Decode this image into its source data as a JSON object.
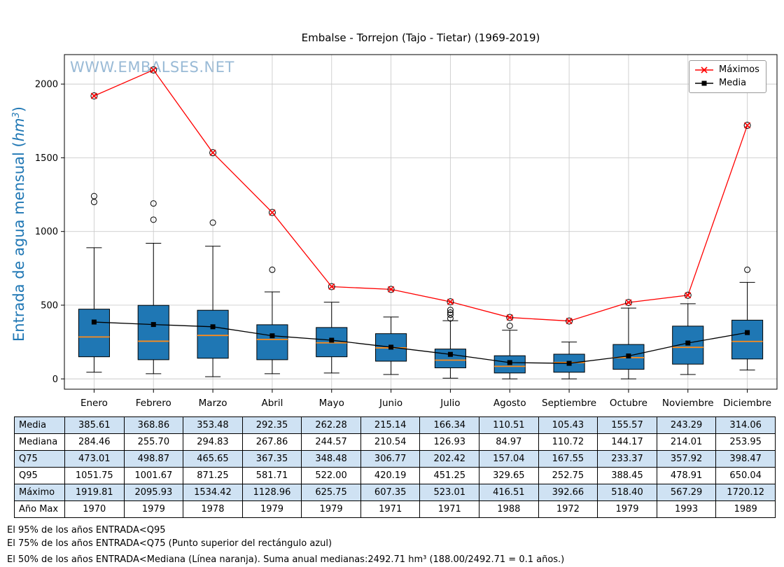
{
  "title": "Embalse - Torrejon (Tajo - Tietar) (1969-2019)",
  "watermark": "WWW.EMBALSES.NET",
  "ylabel": {
    "pre": "Entrada de agua mensual (",
    "unit": "hm",
    "sup": "3",
    "post": ")"
  },
  "legend": {
    "maximos": "Máximos",
    "media": "Media"
  },
  "chart_data": {
    "type": "boxplot",
    "title": "Embalse - Torrejon (Tajo - Tietar) (1969-2019)",
    "ylabel": "Entrada de agua mensual (hm³)",
    "categories": [
      "Enero",
      "Febrero",
      "Marzo",
      "Abril",
      "Mayo",
      "Junio",
      "Julio",
      "Agosto",
      "Septiembre",
      "Octubre",
      "Noviembre",
      "Diciembre"
    ],
    "ylim": [
      -70,
      2200
    ],
    "yticks": [
      0,
      500,
      1000,
      1500,
      2000
    ],
    "grid": true,
    "legend_position": "upper right",
    "colors": {
      "box": "#1f77b4",
      "median": "#ff8c1a",
      "maximos_line": "#ff0000",
      "media_line": "#000000",
      "axis_label": "#1f77b4",
      "table_shade": "#cfe2f3"
    },
    "series": [
      {
        "name": "Máximos",
        "marker": "x-circle",
        "color": "#ff0000",
        "values": [
          1919.81,
          2095.93,
          1534.42,
          1128.96,
          625.75,
          607.35,
          523.01,
          416.51,
          392.66,
          518.4,
          567.29,
          1720.12
        ]
      },
      {
        "name": "Media",
        "marker": "square",
        "color": "#000000",
        "values": [
          385.61,
          368.86,
          353.48,
          292.35,
          262.28,
          215.14,
          166.34,
          110.51,
          105.43,
          155.57,
          243.29,
          314.06
        ]
      }
    ],
    "box": {
      "median": [
        284.46,
        255.7,
        294.83,
        267.86,
        244.57,
        210.54,
        126.93,
        84.97,
        110.72,
        144.17,
        214.01,
        253.95
      ],
      "q3": [
        473.01,
        498.87,
        465.65,
        367.35,
        348.48,
        306.77,
        202.42,
        157.04,
        167.55,
        233.37,
        357.92,
        398.47
      ],
      "q1": [
        150,
        130,
        140,
        130,
        150,
        120,
        75,
        40,
        45,
        65,
        100,
        135
      ],
      "whisker_low": [
        45,
        35,
        15,
        35,
        40,
        30,
        5,
        0,
        0,
        0,
        30,
        60
      ],
      "whisker_high": [
        890,
        920,
        900,
        590,
        520,
        420,
        395,
        330,
        250,
        480,
        510,
        655
      ],
      "outliers": [
        [
          1240,
          1200
        ],
        [
          1190,
          1080
        ],
        [
          1060
        ],
        [
          740
        ],
        [],
        [],
        [
          468,
          450,
          435,
          410
        ],
        [
          360
        ],
        [],
        [],
        [],
        [
          740
        ]
      ]
    }
  },
  "table": {
    "rows": [
      {
        "label": "Media",
        "values": [
          "385.61",
          "368.86",
          "353.48",
          "292.35",
          "262.28",
          "215.14",
          "166.34",
          "110.51",
          "105.43",
          "155.57",
          "243.29",
          "314.06"
        ]
      },
      {
        "label": "Mediana",
        "values": [
          "284.46",
          "255.70",
          "294.83",
          "267.86",
          "244.57",
          "210.54",
          "126.93",
          "84.97",
          "110.72",
          "144.17",
          "214.01",
          "253.95"
        ]
      },
      {
        "label": "Q75",
        "values": [
          "473.01",
          "498.87",
          "465.65",
          "367.35",
          "348.48",
          "306.77",
          "202.42",
          "157.04",
          "167.55",
          "233.37",
          "357.92",
          "398.47"
        ]
      },
      {
        "label": "Q95",
        "values": [
          "1051.75",
          "1001.67",
          "871.25",
          "581.71",
          "522.00",
          "420.19",
          "451.25",
          "329.65",
          "252.75",
          "388.45",
          "478.91",
          "650.04"
        ]
      },
      {
        "label": "Máximo",
        "values": [
          "1919.81",
          "2095.93",
          "1534.42",
          "1128.96",
          "625.75",
          "607.35",
          "523.01",
          "416.51",
          "392.66",
          "518.40",
          "567.29",
          "1720.12"
        ]
      },
      {
        "label": "Año Max",
        "values": [
          "1970",
          "1979",
          "1978",
          "1979",
          "1979",
          "1971",
          "1971",
          "1988",
          "1972",
          "1979",
          "1993",
          "1989"
        ]
      }
    ]
  },
  "notes": [
    "El 95% de los años ENTRADA<Q95",
    "El 75% de los años ENTRADA<Q75 (Punto superior del rectángulo azul)",
    "El 50% de los años ENTRADA<Mediana (Línea naranja). Suma anual medianas:2492.71 hm³ (188.00/2492.71 = 0.1 años.)"
  ]
}
